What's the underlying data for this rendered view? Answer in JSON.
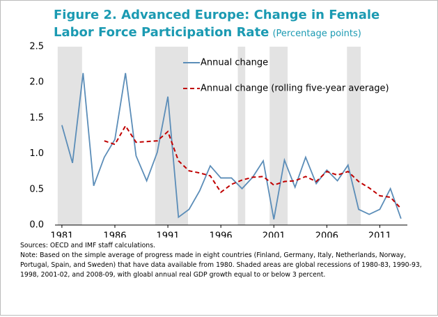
{
  "chart_data": {
    "type": "line",
    "title": "Figure 2. Advanced Europe: Change in Female Labor Force Participation Rate",
    "subtitle": "(Percentage points)",
    "x": [
      1981,
      1982,
      1983,
      1984,
      1985,
      1986,
      1987,
      1988,
      1989,
      1990,
      1991,
      1992,
      1993,
      1994,
      1995,
      1996,
      1997,
      1998,
      1999,
      2000,
      2001,
      2002,
      2003,
      2004,
      2005,
      2006,
      2007,
      2008,
      2009,
      2010,
      2011,
      2012,
      2013
    ],
    "series": [
      {
        "name": "Annual change",
        "color": "#5b8db8",
        "dash": false,
        "values": [
          1.4,
          0.87,
          2.13,
          0.55,
          0.95,
          1.2,
          2.13,
          0.97,
          0.62,
          1.02,
          1.8,
          0.11,
          0.22,
          0.48,
          0.83,
          0.66,
          0.66,
          0.51,
          0.67,
          0.9,
          0.08,
          0.91,
          0.53,
          0.95,
          0.58,
          0.77,
          0.62,
          0.84,
          0.22,
          0.15,
          0.22,
          0.51,
          0.09
        ]
      },
      {
        "name": "Annual change (rolling five-year average)",
        "color": "#c00000",
        "dash": true,
        "values": [
          null,
          null,
          null,
          null,
          1.18,
          1.13,
          1.39,
          1.16,
          1.17,
          1.18,
          1.31,
          0.9,
          0.76,
          0.73,
          0.69,
          0.46,
          0.57,
          0.63,
          0.67,
          0.68,
          0.56,
          0.61,
          0.62,
          0.68,
          0.61,
          0.75,
          0.7,
          0.75,
          0.61,
          0.52,
          0.41,
          0.39,
          0.23
        ]
      }
    ],
    "shaded_periods": [
      [
        1980.6,
        1982.9
      ],
      [
        1989.8,
        1992.9
      ],
      [
        1997.6,
        1998.3
      ],
      [
        2000.6,
        2002.3
      ],
      [
        2007.9,
        2009.2
      ]
    ],
    "shade_color": "#e3e3e3",
    "xlim": [
      1980.35,
      2013.6
    ],
    "xticks": [
      1981,
      1986,
      1991,
      1996,
      2001,
      2006,
      2011
    ],
    "ylim": [
      0,
      2.5
    ],
    "yticks": [
      {
        "value": 0,
        "label": "0.0"
      },
      0.5,
      {
        "value": 1,
        "label": "1.0"
      },
      1.5,
      {
        "value": 2,
        "label": "2.0"
      },
      2.5
    ],
    "source": "Sources: OECD and IMF staff calculations.",
    "note": "Note: Based on the simple average of progress made in eight countries (Finland, Germany, Italy, Netherlands, Norway, Portugal, Spain, and Sweden) that have data available from 1980. Shaded areas are global recessions of 1980-83, 1990-93, 1998, 2001-02, and 2008-09, with gloabl annual real GDP growth equal to or below 3  percent."
  }
}
